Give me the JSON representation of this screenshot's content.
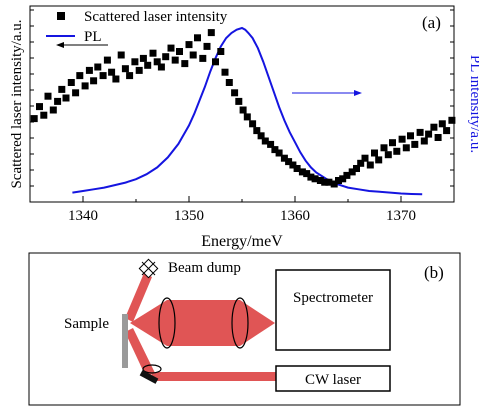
{
  "chart_data": {
    "type": "scatter",
    "panel_label": "(a)",
    "xlabel": "Energy/meV",
    "ylabel_left": "Scattered laser intensity/a.u.",
    "ylabel_right": "PL intensity/a.u.",
    "xlim": [
      1335,
      1375
    ],
    "ylim": [
      0,
      1
    ],
    "x_ticks": [
      "1340",
      "1350",
      "1360",
      "1370"
    ],
    "legend_position": "top-left",
    "colors": {
      "scatter": "#000000",
      "pl": "#1515e0"
    },
    "series": [
      {
        "name": "Scattered laser intensity",
        "marker": "square",
        "x": [
          1335.4,
          1335.9,
          1336.3,
          1336.7,
          1337.2,
          1337.6,
          1338.0,
          1338.4,
          1338.9,
          1339.3,
          1339.7,
          1340.2,
          1340.6,
          1341.0,
          1341.4,
          1341.9,
          1342.3,
          1342.7,
          1343.1,
          1343.6,
          1344.0,
          1344.4,
          1344.9,
          1345.3,
          1345.7,
          1346.1,
          1346.6,
          1347.0,
          1347.4,
          1347.8,
          1348.3,
          1348.7,
          1349.1,
          1349.6,
          1350.0,
          1350.4,
          1350.8,
          1351.3,
          1351.7,
          1352.1,
          1352.5,
          1353.0,
          1353.4,
          1353.8,
          1354.3,
          1354.7,
          1355.1,
          1355.5,
          1356.0,
          1356.4,
          1356.8,
          1357.2,
          1357.7,
          1358.1,
          1358.5,
          1359.0,
          1359.4,
          1359.8,
          1360.2,
          1360.7,
          1361.1,
          1361.5,
          1361.9,
          1362.4,
          1362.8,
          1363.2,
          1363.7,
          1364.1,
          1364.5,
          1364.9,
          1365.4,
          1365.8,
          1366.2,
          1366.6,
          1367.1,
          1367.5,
          1367.9,
          1368.4,
          1368.8,
          1369.2,
          1369.6,
          1370.1,
          1370.5,
          1370.9,
          1371.3,
          1371.8,
          1372.2,
          1372.6,
          1373.1,
          1373.5,
          1373.9,
          1374.3,
          1374.8
        ],
        "y": [
          0.45,
          0.52,
          0.47,
          0.58,
          0.5,
          0.55,
          0.62,
          0.57,
          0.66,
          0.6,
          0.7,
          0.64,
          0.73,
          0.67,
          0.75,
          0.7,
          0.79,
          0.72,
          0.68,
          0.82,
          0.74,
          0.7,
          0.78,
          0.73,
          0.8,
          0.76,
          0.83,
          0.78,
          0.75,
          0.81,
          0.86,
          0.79,
          0.84,
          0.77,
          0.88,
          0.82,
          0.92,
          0.8,
          0.87,
          0.95,
          0.78,
          0.84,
          0.72,
          0.66,
          0.6,
          0.55,
          0.5,
          0.46,
          0.42,
          0.38,
          0.35,
          0.32,
          0.3,
          0.27,
          0.25,
          0.22,
          0.2,
          0.18,
          0.16,
          0.14,
          0.13,
          0.11,
          0.1,
          0.09,
          0.08,
          0.08,
          0.07,
          0.09,
          0.1,
          0.12,
          0.14,
          0.16,
          0.19,
          0.22,
          0.18,
          0.25,
          0.21,
          0.28,
          0.24,
          0.31,
          0.26,
          0.33,
          0.28,
          0.35,
          0.3,
          0.37,
          0.32,
          0.36,
          0.4,
          0.34,
          0.42,
          0.38,
          0.44
        ]
      },
      {
        "name": "PL",
        "marker": "line",
        "x": [
          1339,
          1340,
          1341,
          1342,
          1343,
          1344,
          1345,
          1346,
          1347,
          1348,
          1349,
          1350,
          1350.5,
          1351,
          1351.5,
          1352,
          1352.5,
          1353,
          1353.5,
          1354,
          1354.5,
          1355,
          1355.3,
          1355.6,
          1356,
          1356.5,
          1357,
          1357.5,
          1358,
          1358.5,
          1359,
          1359.5,
          1360,
          1360.5,
          1361,
          1361.5,
          1362,
          1363,
          1364,
          1365,
          1366,
          1367,
          1368,
          1369,
          1370,
          1371,
          1372
        ],
        "y": [
          0.02,
          0.03,
          0.04,
          0.05,
          0.065,
          0.08,
          0.1,
          0.13,
          0.17,
          0.23,
          0.31,
          0.42,
          0.49,
          0.57,
          0.65,
          0.74,
          0.82,
          0.89,
          0.94,
          0.97,
          0.99,
          1.0,
          0.99,
          0.97,
          0.94,
          0.88,
          0.8,
          0.71,
          0.62,
          0.53,
          0.45,
          0.38,
          0.32,
          0.26,
          0.21,
          0.17,
          0.14,
          0.1,
          0.07,
          0.05,
          0.04,
          0.03,
          0.025,
          0.02,
          0.015,
          0.012,
          0.01
        ]
      }
    ]
  },
  "setup_diagram": {
    "panel_label": "(b)",
    "labels": {
      "beam_dump": "Beam dump",
      "sample": "Sample",
      "spectrometer": "Spectrometer",
      "cw_laser": "CW laser"
    },
    "colors": {
      "beam": "#e05555",
      "sample": "#9a9a9a"
    }
  }
}
